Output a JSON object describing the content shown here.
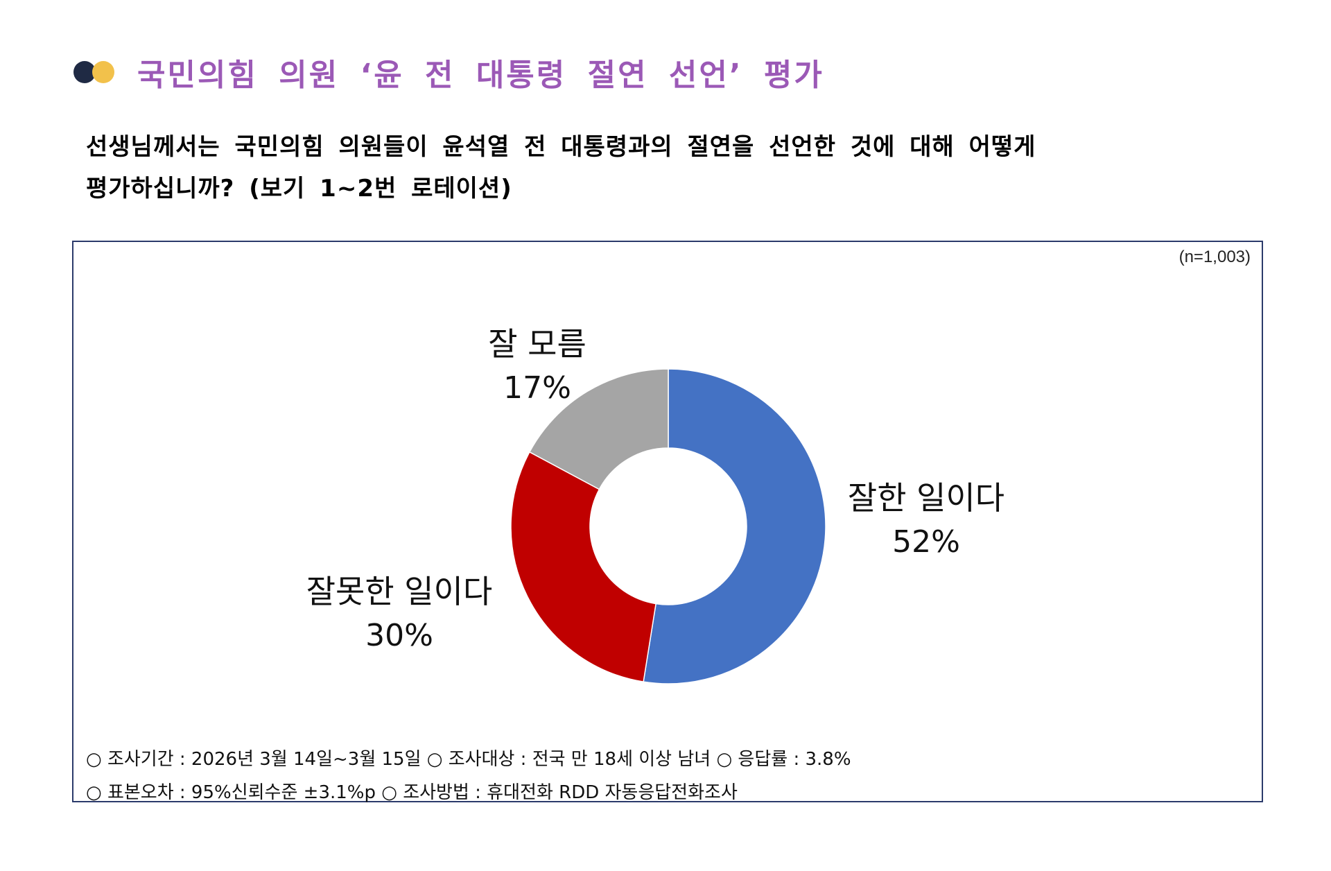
{
  "header": {
    "title": "국민의힘 의원 ‘윤 전 대통령 절연 선언’ 평가",
    "question_line1": "선생님께서는 국민의힘 의원들이 윤석열 전 대통령과의 절연을 선언한 것에 대해 어떻게",
    "question_line2": "평가하십니까? (보기 1~2번 로테이션)"
  },
  "sample_size": "(n=1,003)",
  "chart_data": {
    "type": "pie",
    "categories": [
      "잘한 일이다",
      "잘못한 일이다",
      "잘 모름"
    ],
    "values": [
      52,
      30,
      17
    ],
    "value_labels": [
      "52%",
      "30%",
      "17%"
    ],
    "colors": [
      "#4472c4",
      "#c00000",
      "#a5a5a5"
    ],
    "title": "",
    "donut": true
  },
  "footnotes": {
    "line1": "○ 조사기간 : 2026년 3월 14일~3월 15일 ○ 조사대상 : 전국 만 18세 이상 남녀 ○ 응답률 : 3.8%",
    "line2": "○ 표본오차 : 95%신뢰수준 ±3.1%p ○ 조사방법 : 휴대전화 RDD 자동응답전화조사"
  }
}
